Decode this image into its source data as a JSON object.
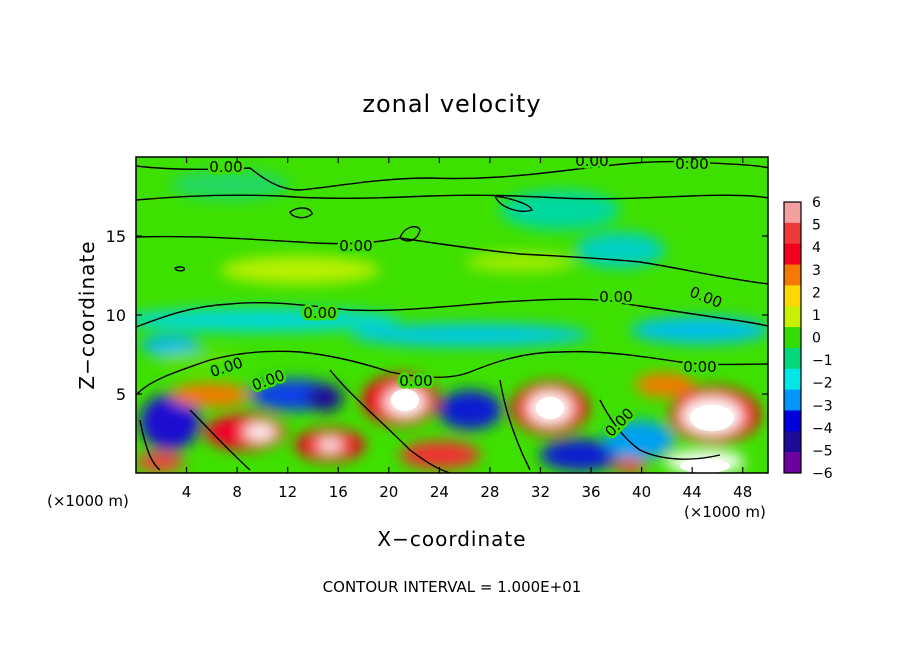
{
  "chart_data": {
    "type": "heatmap",
    "title": "zonal velocity",
    "xlabel": "X−coordinate",
    "ylabel": "Z−coordinate",
    "x_unit_label": "(×1000 m)",
    "x_unit_label_right": "(×1000 m)",
    "footer": "CONTOUR INTERVAL = 1.000E+01",
    "xlim": [
      0,
      50
    ],
    "ylim": [
      0,
      20
    ],
    "x_ticks": [
      4,
      8,
      12,
      16,
      20,
      24,
      28,
      32,
      36,
      40,
      44,
      48
    ],
    "y_ticks": [
      5,
      10,
      15
    ],
    "colorbar": {
      "ticks": [
        "6",
        "5",
        "4",
        "3",
        "2",
        "1",
        "0",
        "−1",
        "−2",
        "−3",
        "−4",
        "−5",
        "−6"
      ],
      "range": [
        -6,
        6
      ]
    },
    "contour_labels": [
      {
        "text": "0.00",
        "x": 7,
        "z": 19.4
      },
      {
        "text": "0.00",
        "x": 35.5,
        "z": 19.7
      },
      {
        "text": "0.00",
        "x": 44.5,
        "z": 19.4
      },
      {
        "text": "0.00",
        "x": 17.5,
        "z": 14.3
      },
      {
        "text": "0.00",
        "x": 37.5,
        "z": 11.0
      },
      {
        "text": "0.00",
        "x": 42.5,
        "z": 11.0
      },
      {
        "text": "0.00",
        "x": 14.5,
        "z": 10.0
      },
      {
        "text": "0.00",
        "x": 7,
        "z": 6.8
      },
      {
        "text": "0.00",
        "x": 10.5,
        "z": 5.8
      },
      {
        "text": "0.00",
        "x": 22.5,
        "z": 5.9
      },
      {
        "text": "0.00",
        "x": 38.5,
        "z": 3.0
      },
      {
        "text": "0.00",
        "x": 43.5,
        "z": 6.7
      }
    ]
  },
  "colors": {
    "scale": [
      "#f4a0a0",
      "#f03a3a",
      "#f0001e",
      "#f57800",
      "#ffd800",
      "#c8f000",
      "#32dc00",
      "#00d87a",
      "#00e6e6",
      "#0096ff",
      "#0000dc",
      "#1e0a96",
      "#6e00a0"
    ]
  }
}
